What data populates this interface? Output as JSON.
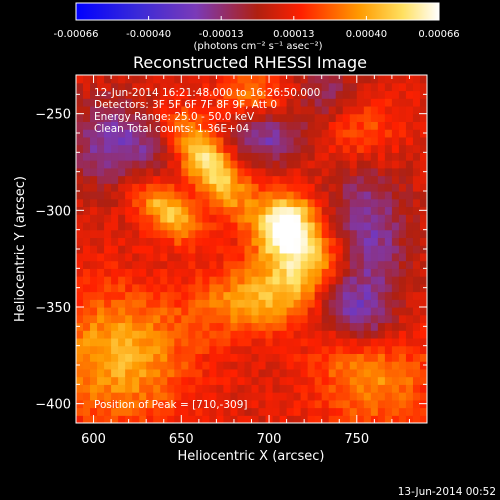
{
  "colorbar": {
    "tick_labels": [
      "-0.00066",
      "-0.00040",
      "-0.00013",
      "0.00013",
      "0.00040",
      "0.00066"
    ],
    "units_label": "(photons cm⁻² s⁻¹ asec⁻²)",
    "range": [
      -0.00066,
      0.00066
    ]
  },
  "info": {
    "line1": "12-Jun-2014 16:21:48.000 to 16:26:50.000",
    "line2": "Detectors: 3F 5F 6F 7F 8F 9F, Att 0",
    "line3": "Energy Range: 25.0 - 50.0 keV",
    "line4": "Clean    Total counts: 1.36E+04",
    "peak": "Position of Peak = [710,-309]"
  },
  "footer": {
    "date": "13-Jun-2014 00:52"
  },
  "colors": {
    "background": "#000000",
    "axis": "#ffffff"
  },
  "chart_data": {
    "type": "heatmap",
    "title": "Reconstructed RHESSI Image",
    "xlabel": "Heliocentric X (arcsec)",
    "ylabel": "Heliocentric Y (arcsec)",
    "xlim": [
      590,
      790
    ],
    "ylim": [
      -410,
      -230
    ],
    "x_ticks": [
      600,
      650,
      700,
      750
    ],
    "y_ticks": [
      -400,
      -350,
      -300,
      -250
    ],
    "x_tick_labels": [
      "600",
      "650",
      "700",
      "750"
    ],
    "y_tick_labels": [
      "−400",
      "−350",
      "−300",
      "−250"
    ],
    "colormap": "blue-purple-red-yellow-white",
    "peak_position": [
      710,
      -309
    ],
    "sources": [
      {
        "x": 665,
        "y": -275,
        "sx": 22,
        "sy": 9,
        "rot": -48,
        "amp": 0.00052
      },
      {
        "x": 642,
        "y": -300,
        "sx": 16,
        "sy": 8,
        "rot": -35,
        "amp": 0.0004
      },
      {
        "x": 710,
        "y": -309,
        "sx": 12,
        "sy": 12,
        "rot": 0,
        "amp": 0.00066
      },
      {
        "x": 725,
        "y": -330,
        "sx": 18,
        "sy": 12,
        "rot": 30,
        "amp": 0.00035
      },
      {
        "x": 690,
        "y": -345,
        "sx": 22,
        "sy": 12,
        "rot": 10,
        "amp": 0.0003
      },
      {
        "x": 615,
        "y": -375,
        "sx": 28,
        "sy": 24,
        "rot": 0,
        "amp": 0.00034
      },
      {
        "x": 760,
        "y": -385,
        "sx": 24,
        "sy": 20,
        "rot": 0,
        "amp": 0.00028
      },
      {
        "x": 752,
        "y": -258,
        "sx": 16,
        "sy": 14,
        "rot": 0,
        "amp": 0.0002
      },
      {
        "x": 690,
        "y": -240,
        "sx": 14,
        "sy": 8,
        "rot": 0,
        "amp": 0.00025
      }
    ],
    "negative_regions": [
      {
        "x": 700,
        "y": -262,
        "sx": 16,
        "sy": 10,
        "rot": 0,
        "amp": -0.00028
      },
      {
        "x": 615,
        "y": -265,
        "sx": 22,
        "sy": 16,
        "rot": 0,
        "amp": -0.0003
      },
      {
        "x": 755,
        "y": -315,
        "sx": 16,
        "sy": 28,
        "rot": 0,
        "amp": -0.00032
      },
      {
        "x": 748,
        "y": -352,
        "sx": 20,
        "sy": 10,
        "rot": -30,
        "amp": -0.00026
      },
      {
        "x": 735,
        "y": -240,
        "sx": 14,
        "sy": 10,
        "rot": 0,
        "amp": -0.0002
      }
    ]
  }
}
